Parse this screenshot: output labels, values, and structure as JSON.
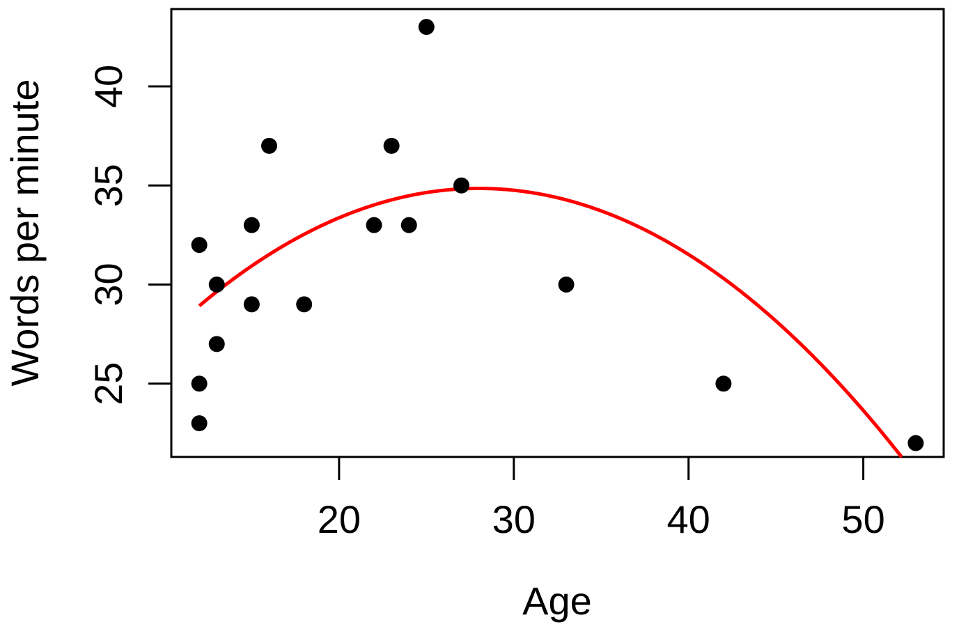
{
  "chart_data": {
    "type": "scatter",
    "title": "",
    "xlabel": "Age",
    "ylabel": "Words per minute",
    "xlim": [
      10.4,
      54.6
    ],
    "ylim": [
      21.3,
      43.9
    ],
    "xticks": [
      20,
      30,
      40,
      50
    ],
    "yticks": [
      25,
      30,
      35,
      40
    ],
    "grid": false,
    "legend": "none",
    "colors": {
      "points": "#000000",
      "fit_line": "#ff0000",
      "axes": "#000000"
    },
    "points": [
      {
        "x": 12,
        "y": 32
      },
      {
        "x": 12,
        "y": 25
      },
      {
        "x": 12,
        "y": 23
      },
      {
        "x": 13,
        "y": 30
      },
      {
        "x": 13,
        "y": 27
      },
      {
        "x": 15,
        "y": 33
      },
      {
        "x": 15,
        "y": 29
      },
      {
        "x": 16,
        "y": 37
      },
      {
        "x": 18,
        "y": 29
      },
      {
        "x": 22,
        "y": 33
      },
      {
        "x": 23,
        "y": 37
      },
      {
        "x": 24,
        "y": 33
      },
      {
        "x": 25,
        "y": 43
      },
      {
        "x": 27,
        "y": 35
      },
      {
        "x": 33,
        "y": 30
      },
      {
        "x": 42,
        "y": 25
      },
      {
        "x": 53,
        "y": 22
      }
    ],
    "fit": {
      "type": "quadratic",
      "coefficients": {
        "a": -0.02315,
        "b": 1.2964,
        "c": 16.7
      },
      "x_start": 12,
      "x_end": 54
    }
  }
}
